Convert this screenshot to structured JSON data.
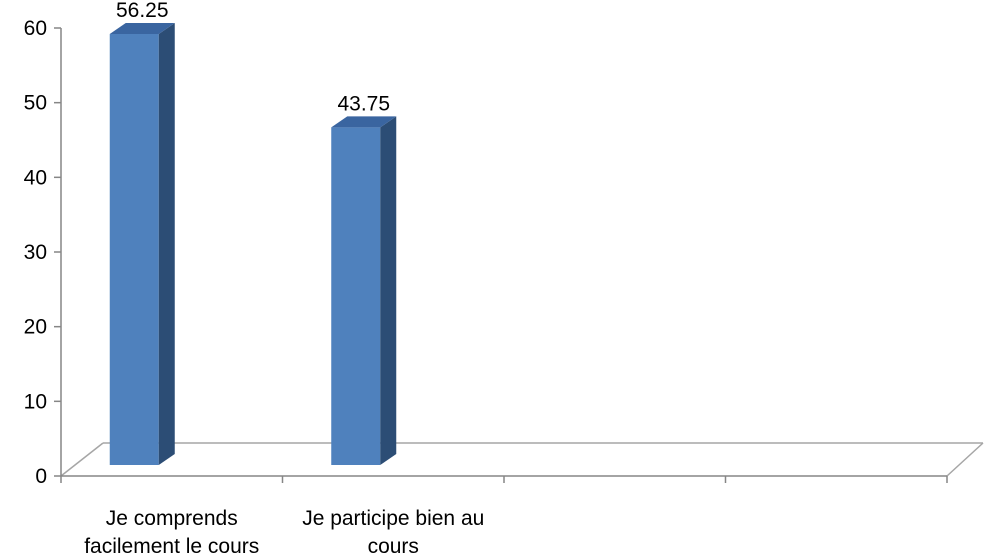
{
  "chart_data": {
    "type": "bar",
    "style": "3d-column",
    "categories": [
      [
        "Je comprends",
        "facilement le cours"
      ],
      [
        "Je participe bien au",
        "cours"
      ],
      [
        "",
        ""
      ],
      [
        "",
        ""
      ]
    ],
    "values": [
      56.25,
      43.75,
      null,
      null
    ],
    "data_labels": [
      "56.25",
      "43.75",
      "",
      ""
    ],
    "ylim": [
      0,
      60
    ],
    "yticks": [
      0,
      10,
      20,
      30,
      40,
      50,
      60
    ],
    "legend": "none",
    "grid": false,
    "colors": {
      "bar_front": "#4F81BD",
      "bar_side": "#2C4D75",
      "bar_top": "#3A65A0",
      "axis": "#868686",
      "floor_line": "#A6A6A6"
    }
  }
}
